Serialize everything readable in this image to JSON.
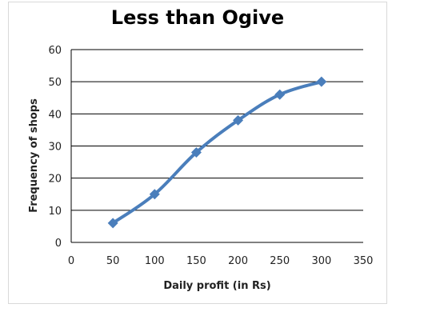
{
  "chart_data": {
    "type": "line",
    "title": "Less than Ogive",
    "xlabel": "Daily profit (in Rs)",
    "ylabel": "Frequency of shops",
    "x": [
      50,
      100,
      150,
      200,
      250,
      300
    ],
    "series": [
      {
        "values": [
          6,
          15,
          28,
          38,
          46,
          50
        ]
      }
    ],
    "xlim": [
      0,
      350
    ],
    "ylim": [
      0,
      60
    ],
    "xticks": [
      0,
      50,
      100,
      150,
      200,
      250,
      300,
      350
    ],
    "yticks": [
      0,
      10,
      20,
      30,
      40,
      50,
      60
    ],
    "grid": "horizontal",
    "legend": "none",
    "line_color": "#4a7ebb",
    "marker": "diamond"
  }
}
